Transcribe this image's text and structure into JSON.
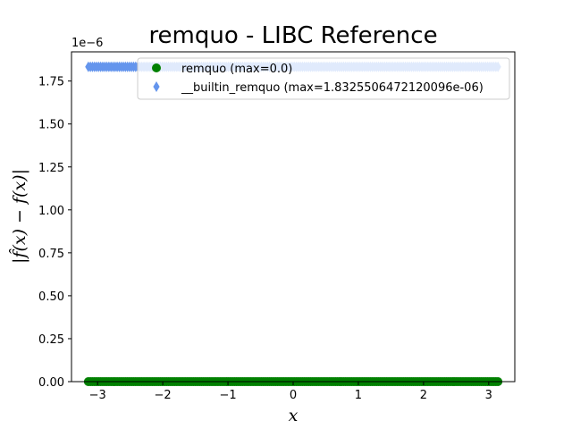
{
  "chart_data": {
    "type": "scatter",
    "title": "remquo - LIBC Reference",
    "xlabel": "x",
    "ylabel": "|f̂(x) − f(x)|",
    "offset_text": "1e−6",
    "xlim": [
      -3.4,
      3.4
    ],
    "ylim": [
      0,
      1.92
    ],
    "x_ticks": [
      -3,
      -2,
      -1,
      0,
      1,
      2,
      3
    ],
    "x_tick_labels": [
      "−3",
      "−2",
      "−1",
      "0",
      "1",
      "2",
      "3"
    ],
    "y_ticks": [
      0.0,
      0.25,
      0.5,
      0.75,
      1.0,
      1.25,
      1.5,
      1.75
    ],
    "y_tick_labels": [
      "0.00",
      "0.25",
      "0.50",
      "0.75",
      "1.00",
      "1.25",
      "1.50",
      "1.75"
    ],
    "x_range": [
      -3.14159,
      3.14159
    ],
    "series": [
      {
        "name": "remquo (max=0.0)",
        "marker": "circle",
        "color": "#008000",
        "y_constant": 0.0
      },
      {
        "name": "__builtin_remquo (max=1.8325506472120096e-06)",
        "marker": "thin_diamond",
        "color": "#6495ED",
        "y_constant": 1.8325506472120097
      }
    ],
    "legend_position": "top-right",
    "grid": false
  }
}
